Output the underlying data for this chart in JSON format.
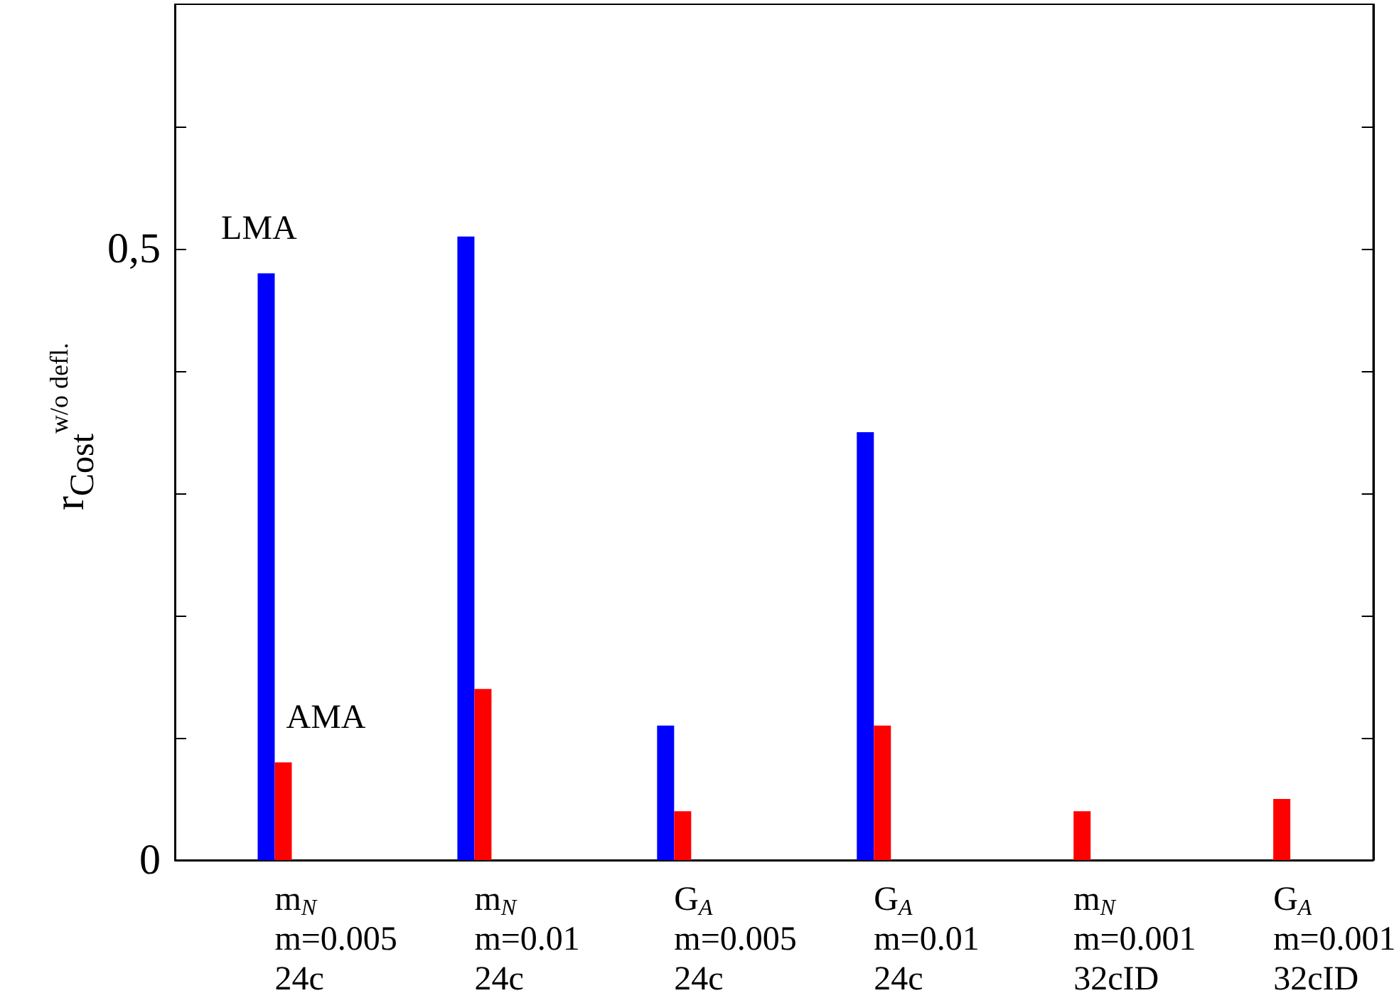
{
  "chart_data": {
    "type": "bar",
    "categories": [
      "m$_{N}$\nm=0.005\n24c",
      "m$_{N}$\nm=0.01\n24c",
      "G$_{A}$\nm=0.005\n24c",
      "G$_{A}$\nm=0.01\n24c",
      "m$_{N}$\nm=0.001\n32cID",
      "G$_{A}$\nm=0.001\n32cID"
    ],
    "ylabel": "r$_{Cost}$$^{w/o defl.}$",
    "series": [
      {
        "name": "LMA",
        "color": "#0000ff",
        "values": [
          0.48,
          0.51,
          0.11,
          0.35,
          null,
          null
        ]
      },
      {
        "name": "AMA",
        "color": "#ff0000",
        "values": [
          0.08,
          0.14,
          0.04,
          0.11,
          0.04,
          0.05
        ]
      }
    ],
    "ylim": [
      0,
      0.7
    ],
    "yticks": [
      0,
      {
        "value": 0.1,
        "label": null
      },
      {
        "value": 0.2,
        "label": null
      },
      {
        "value": 0.3,
        "label": null
      },
      {
        "value": 0.4,
        "label": null
      },
      {
        "value": 0.5,
        "label": "0,5"
      },
      {
        "value": 0.6,
        "label": null
      }
    ],
    "grid": false,
    "legend": false
  }
}
